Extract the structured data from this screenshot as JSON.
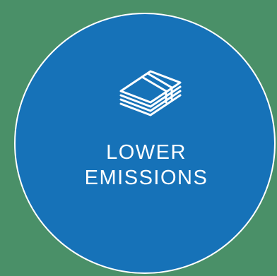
{
  "badge": {
    "line1": "LOWER",
    "line2": "EMISSIONS",
    "icon": "money-stack-icon",
    "colors": {
      "background": "#4a9068",
      "circle": "#1672b8",
      "foreground": "#ffffff"
    }
  }
}
